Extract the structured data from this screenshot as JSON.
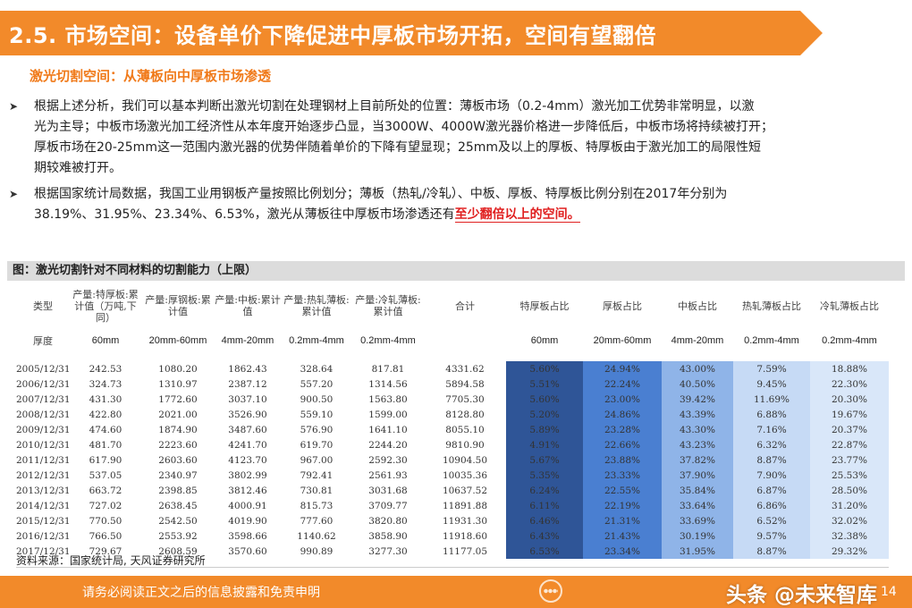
{
  "header": {
    "title": "2.5. 市场空间：设备单价下降促进中厚板市场开拓，空间有望翻倍",
    "subtitle": "激光切割空间：从薄板向中厚板市场渗透"
  },
  "bullets": {
    "b1": {
      "line1": "根据上述分析，我们可以基本判断出激光切割在处理钢材上目前所处的位置：薄板市场（0.2-4mm）激光加工优势非常明显，以激",
      "line2": "光为主导；中板市场激光加工经济性从本年度开始逐步凸显，当3000W、4000W激光器价格进一步降低后，中板市场将持续被打开；",
      "line3": "厚板市场在20-25mm这一范围内激光器的优势伴随着单价的下降有望显现；25mm及以上的厚板、特厚板由于激光加工的局限性短",
      "line4": "期较难被打开。"
    },
    "b2": {
      "line1": "根据国家统计局数据，我国工业用钢板产量按照比例划分；薄板（热轧/冷轧）、中板、厚板、特厚板比例分别在2017年分别为",
      "line2_a": "38.19%、31.95%、23.34%、6.53%，激光从薄板往中厚板市场渗透还有",
      "line2_b": "至少翻倍以上的空间。"
    }
  },
  "figure": {
    "caption": "图：激光切割针对不同材料的切割能力（上限）",
    "source": "资料来源：国家统计局, 天风证券研究所"
  },
  "table": {
    "headers": [
      "类型",
      "产量:特厚板:累计值（万吨,下同）",
      "产量:厚钢板:累计值",
      "产量:中板:累计值",
      "产量:热轧薄板:累计值",
      "产量:冷轧薄板:累计值",
      "合计",
      "特厚板占比",
      "厚板占比",
      "中板占比",
      "热轧薄板占比",
      "冷轧薄板占比"
    ],
    "units": [
      "厚度",
      "60mm",
      "20mm-60mm",
      "4mm-20mm",
      "0.2mm-4mm",
      "0.2mm-4mm",
      "",
      "60mm",
      "20mm-60mm",
      "4mm-20mm",
      "0.2mm-4mm",
      "0.2mm-4mm"
    ],
    "rows": [
      [
        "2005/12/31",
        "242.53",
        "1080.20",
        "1862.43",
        "328.64",
        "817.81",
        "4331.62",
        "5.60%",
        "24.94%",
        "43.00%",
        "7.59%",
        "18.88%"
      ],
      [
        "2006/12/31",
        "324.73",
        "1310.97",
        "2387.12",
        "557.20",
        "1314.56",
        "5894.58",
        "5.51%",
        "22.24%",
        "40.50%",
        "9.45%",
        "22.30%"
      ],
      [
        "2007/12/31",
        "431.30",
        "1772.60",
        "3037.10",
        "900.50",
        "1563.80",
        "7705.30",
        "5.60%",
        "23.00%",
        "39.42%",
        "11.69%",
        "20.30%"
      ],
      [
        "2008/12/31",
        "422.80",
        "2021.00",
        "3526.90",
        "559.10",
        "1599.00",
        "8128.80",
        "5.20%",
        "24.86%",
        "43.39%",
        "6.88%",
        "19.67%"
      ],
      [
        "2009/12/31",
        "474.60",
        "1874.90",
        "3487.60",
        "576.90",
        "1641.10",
        "8055.10",
        "5.89%",
        "23.28%",
        "43.30%",
        "7.16%",
        "20.37%"
      ],
      [
        "2010/12/31",
        "481.70",
        "2223.60",
        "4241.70",
        "619.70",
        "2244.20",
        "9810.90",
        "4.91%",
        "22.66%",
        "43.23%",
        "6.32%",
        "22.87%"
      ],
      [
        "2011/12/31",
        "617.90",
        "2603.60",
        "4123.70",
        "967.00",
        "2592.30",
        "10904.50",
        "5.67%",
        "23.88%",
        "37.82%",
        "8.87%",
        "23.77%"
      ],
      [
        "2012/12/31",
        "537.05",
        "2340.97",
        "3802.99",
        "792.41",
        "2561.93",
        "10035.36",
        "5.35%",
        "23.33%",
        "37.90%",
        "7.90%",
        "25.53%"
      ],
      [
        "2013/12/31",
        "663.72",
        "2398.85",
        "3812.46",
        "730.81",
        "3031.68",
        "10637.52",
        "6.24%",
        "22.55%",
        "35.84%",
        "6.87%",
        "28.50%"
      ],
      [
        "2014/12/31",
        "727.02",
        "2638.45",
        "4000.91",
        "815.73",
        "3709.77",
        "11891.88",
        "6.11%",
        "22.19%",
        "33.64%",
        "6.86%",
        "31.20%"
      ],
      [
        "2015/12/31",
        "770.50",
        "2542.50",
        "4019.90",
        "777.60",
        "3820.80",
        "11931.30",
        "6.46%",
        "21.31%",
        "33.69%",
        "6.52%",
        "32.02%"
      ],
      [
        "2016/12/31",
        "766.50",
        "2553.92",
        "3598.66",
        "1140.62",
        "3858.90",
        "11918.60",
        "6.43%",
        "21.43%",
        "30.19%",
        "9.57%",
        "32.38%"
      ],
      [
        "2017/12/31",
        "729.67",
        "2608.59",
        "3570.60",
        "990.89",
        "3277.30",
        "11177.05",
        "6.53%",
        "23.34%",
        "31.95%",
        "8.87%",
        "29.32%"
      ]
    ]
  },
  "footer": {
    "disclaimer": "请务必阅读正文之后的信息披露和免责申明",
    "watermark": "头条 @未来智库",
    "page": "14"
  }
}
